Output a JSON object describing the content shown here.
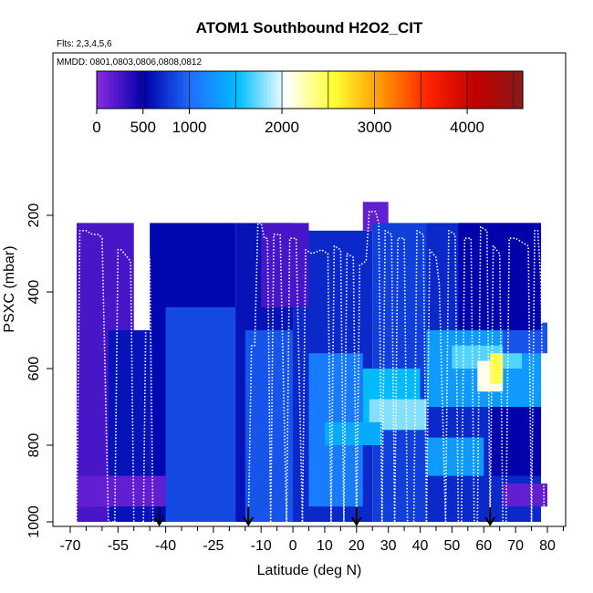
{
  "chart_data": {
    "type": "heatmap",
    "title": "ATOM1 Southbound H2O2_CIT",
    "flights_note": "Flts: 2,3,4,5,6",
    "dates_note": "MMDD: 0801,0803,0806,0808,0812",
    "xlabel": "Latitude (deg N)",
    "ylabel": "PSXC (mbar)",
    "xlim": [
      -70,
      85
    ],
    "ylim": [
      1010,
      130
    ],
    "x_ticks": [
      -70,
      -55,
      -40,
      -25,
      -10,
      0,
      10,
      20,
      30,
      40,
      50,
      60,
      70,
      80
    ],
    "x_minor_ticks": [
      -65,
      -60,
      -50,
      -45,
      -35,
      -30,
      -20,
      -15,
      -5,
      5,
      15,
      25,
      35,
      45,
      55,
      65,
      75,
      85
    ],
    "y_ticks": [
      200,
      400,
      600,
      800,
      1000
    ],
    "colorbar": {
      "min": 0,
      "max": 4600,
      "ticks": [
        0,
        500,
        1000,
        2000,
        3000,
        4000
      ],
      "segment_edges": [
        0,
        500,
        1000,
        1500,
        2000,
        2500,
        3000,
        3500,
        4000,
        4500
      ],
      "colors": [
        "#8a2be2",
        "#0000a8",
        "#1e6fff",
        "#00bfff",
        "#ffffff",
        "#ffff33",
        "#ff9900",
        "#ff2200",
        "#c00000",
        "#8b1a1a"
      ]
    },
    "arrow_latitudes": [
      -42,
      -14,
      20,
      62
    ],
    "cells": [
      {
        "lat": [
          -68,
          -50
        ],
        "p": [
          220,
          1000
        ],
        "v": 250
      },
      {
        "lat": [
          -58,
          -45
        ],
        "p": [
          500,
          1000
        ],
        "v": 600
      },
      {
        "lat": [
          -45,
          -18
        ],
        "p": [
          220,
          1000
        ],
        "v": 550
      },
      {
        "lat": [
          -40,
          -15
        ],
        "p": [
          440,
          1000
        ],
        "v": 850
      },
      {
        "lat": [
          -18,
          0
        ],
        "p": [
          220,
          1000
        ],
        "v": 600
      },
      {
        "lat": [
          -15,
          5
        ],
        "p": [
          500,
          1000
        ],
        "v": 900
      },
      {
        "lat": [
          0,
          25
        ],
        "p": [
          240,
          1000
        ],
        "v": 700
      },
      {
        "lat": [
          5,
          22
        ],
        "p": [
          560,
          960
        ],
        "v": 1100
      },
      {
        "lat": [
          22,
          30
        ],
        "p": [
          165,
          240
        ],
        "v": 150
      },
      {
        "lat": [
          25,
          42
        ],
        "p": [
          220,
          1000
        ],
        "v": 800
      },
      {
        "lat": [
          22,
          40
        ],
        "p": [
          600,
          760
        ],
        "v": 1500
      },
      {
        "lat": [
          24,
          42
        ],
        "p": [
          680,
          760
        ],
        "v": 1800
      },
      {
        "lat": [
          10,
          28
        ],
        "p": [
          740,
          800
        ],
        "v": 1400
      },
      {
        "lat": [
          42,
          78
        ],
        "p": [
          220,
          1000
        ],
        "v": 700
      },
      {
        "lat": [
          42,
          78
        ],
        "p": [
          500,
          700
        ],
        "v": 1300
      },
      {
        "lat": [
          50,
          72
        ],
        "p": [
          540,
          600
        ],
        "v": 1700
      },
      {
        "lat": [
          58,
          66
        ],
        "p": [
          580,
          660
        ],
        "v": 2100
      },
      {
        "lat": [
          62,
          66
        ],
        "p": [
          560,
          640
        ],
        "v": 2500
      },
      {
        "lat": [
          42,
          60
        ],
        "p": [
          780,
          880
        ],
        "v": 1300
      },
      {
        "lat": [
          66,
          80
        ],
        "p": [
          480,
          560
        ],
        "v": 900
      },
      {
        "lat": [
          66,
          80
        ],
        "p": [
          900,
          960
        ],
        "v": 150
      },
      {
        "lat": [
          -68,
          -40
        ],
        "p": [
          880,
          960
        ],
        "v": 150
      },
      {
        "lat": [
          62,
          78
        ],
        "p": [
          700,
          880
        ],
        "v": 500
      },
      {
        "lat": [
          -10,
          5
        ],
        "p": [
          220,
          440
        ],
        "v": 250
      },
      {
        "lat": [
          52,
          78
        ],
        "p": [
          220,
          500
        ],
        "v": 500
      }
    ],
    "tracks": [
      {
        "lat": [
          -68,
          -67,
          -65,
          -63,
          -61,
          -60
        ],
        "p": [
          1000,
          240,
          240,
          250,
          250,
          260
        ]
      },
      {
        "lat": [
          -60,
          -58,
          -56
        ],
        "p": [
          260,
          1000,
          1000
        ]
      },
      {
        "lat": [
          -56,
          -55,
          -54,
          -52,
          -51,
          -50
        ],
        "p": [
          1000,
          290,
          290,
          310,
          320,
          1000
        ]
      },
      {
        "lat": [
          -47,
          -46,
          -45,
          -44
        ],
        "p": [
          1000,
          300,
          310,
          1000
        ]
      },
      {
        "lat": [
          -14,
          -13,
          -12,
          -11,
          -10,
          -9,
          -8,
          -7
        ],
        "p": [
          1000,
          540,
          540,
          220,
          220,
          260,
          260,
          1000
        ]
      },
      {
        "lat": [
          -7,
          -6,
          -4,
          -2
        ],
        "p": [
          1000,
          250,
          250,
          1000
        ]
      },
      {
        "lat": [
          -2,
          -1,
          1,
          3
        ],
        "p": [
          1000,
          260,
          260,
          1000
        ]
      },
      {
        "lat": [
          3,
          4,
          6,
          9,
          11,
          12
        ],
        "p": [
          1000,
          290,
          300,
          290,
          300,
          1000
        ]
      },
      {
        "lat": [
          12,
          13,
          15,
          16
        ],
        "p": [
          1000,
          280,
          290,
          1000
        ]
      },
      {
        "lat": [
          16,
          17,
          19,
          20
        ],
        "p": [
          1000,
          300,
          310,
          1000
        ]
      },
      {
        "lat": [
          20,
          21,
          23,
          24,
          26,
          27,
          28
        ],
        "p": [
          1000,
          330,
          320,
          190,
          190,
          220,
          1000
        ]
      },
      {
        "lat": [
          28,
          29,
          31,
          32
        ],
        "p": [
          1000,
          240,
          250,
          1000
        ]
      },
      {
        "lat": [
          32,
          33,
          35,
          36
        ],
        "p": [
          1000,
          260,
          260,
          1000
        ]
      },
      {
        "lat": [
          38,
          39,
          41,
          42
        ],
        "p": [
          1000,
          240,
          250,
          1000
        ]
      },
      {
        "lat": [
          42,
          43,
          45,
          46,
          48
        ],
        "p": [
          1000,
          290,
          310,
          380,
          1000
        ]
      },
      {
        "lat": [
          48,
          49,
          51,
          52
        ],
        "p": [
          1000,
          240,
          250,
          1000
        ]
      },
      {
        "lat": [
          53,
          54,
          56,
          57
        ],
        "p": [
          1000,
          260,
          260,
          1000
        ]
      },
      {
        "lat": [
          58,
          59,
          61,
          62
        ],
        "p": [
          1000,
          230,
          240,
          1000
        ]
      },
      {
        "lat": [
          62,
          63,
          65,
          66
        ],
        "p": [
          1000,
          280,
          300,
          1000
        ]
      },
      {
        "lat": [
          67,
          68,
          70,
          72,
          74,
          75
        ],
        "p": [
          1000,
          260,
          260,
          270,
          280,
          1000
        ]
      },
      {
        "lat": [
          75,
          76,
          77,
          78,
          79
        ],
        "p": [
          1000,
          240,
          240,
          380,
          1000
        ]
      }
    ]
  }
}
